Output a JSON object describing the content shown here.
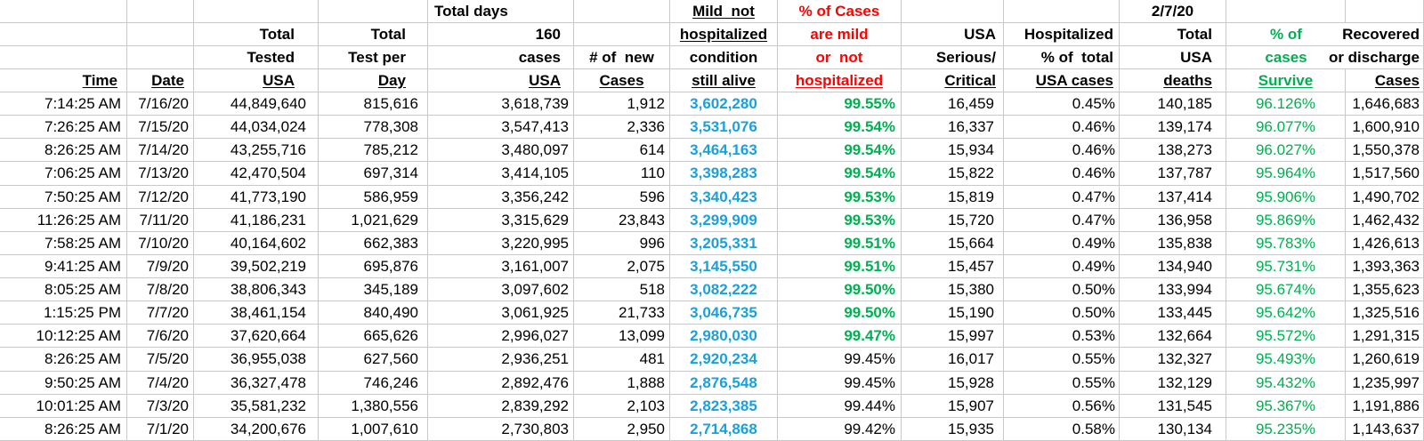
{
  "sheet": {
    "header_rows": [
      [
        "",
        "",
        "",
        "",
        "Total days",
        "",
        "Mild  not",
        "% of Cases",
        "",
        "",
        "2/7/20",
        "",
        ""
      ],
      [
        "",
        "",
        "Total",
        "Total",
        "160",
        "",
        "hospitalized",
        "are mild",
        "USA",
        "Hospitalized",
        "Total",
        "% of",
        "Recovered"
      ],
      [
        "",
        "",
        "Tested",
        "Test per",
        "cases",
        "# of  new",
        "condition",
        "or  not",
        "Serious/",
        "% of  total",
        "USA",
        "cases",
        "or discharge"
      ],
      [
        "Time",
        "Date",
        "USA",
        "Day",
        "USA",
        "Cases",
        "still alive",
        "hospitalized",
        "Critical",
        "USA cases",
        "deaths",
        "Survive",
        "Cases"
      ]
    ],
    "column_keys": [
      "time",
      "date",
      "total_tested_usa",
      "total_test_per_day",
      "cases_usa",
      "new_cases",
      "mild_not_hospitalized",
      "pct_mild_not_hospitalized",
      "usa_serious_critical",
      "hospitalized_pct_of_total",
      "total_usa_deaths",
      "pct_cases_survive",
      "recovered_or_discharged"
    ],
    "rows": [
      [
        "7:14:25 AM",
        "7/16/20",
        "44,849,640",
        "815,616",
        "3,618,739",
        "1,912",
        "3,602,280",
        "99.55%",
        "16,459",
        "0.45%",
        "140,185",
        "96.126%",
        "1,646,683"
      ],
      [
        "7:26:25 AM",
        "7/15/20",
        "44,034,024",
        "778,308",
        "3,547,413",
        "2,336",
        "3,531,076",
        "99.54%",
        "16,337",
        "0.46%",
        "139,174",
        "96.077%",
        "1,600,910"
      ],
      [
        "8:26:25 AM",
        "7/14/20",
        "43,255,716",
        "785,212",
        "3,480,097",
        "614",
        "3,464,163",
        "99.54%",
        "15,934",
        "0.46%",
        "138,273",
        "96.027%",
        "1,550,378"
      ],
      [
        "7:06:25 AM",
        "7/13/20",
        "42,470,504",
        "697,314",
        "3,414,105",
        "110",
        "3,398,283",
        "99.54%",
        "15,822",
        "0.46%",
        "137,787",
        "95.964%",
        "1,517,560"
      ],
      [
        "7:50:25 AM",
        "7/12/20",
        "41,773,190",
        "586,959",
        "3,356,242",
        "596",
        "3,340,423",
        "99.53%",
        "15,819",
        "0.47%",
        "137,414",
        "95.906%",
        "1,490,702"
      ],
      [
        "11:26:25 AM",
        "7/11/20",
        "41,186,231",
        "1,021,629",
        "3,315,629",
        "23,843",
        "3,299,909",
        "99.53%",
        "15,720",
        "0.47%",
        "136,958",
        "95.869%",
        "1,462,432"
      ],
      [
        "7:58:25 AM",
        "7/10/20",
        "40,164,602",
        "662,383",
        "3,220,995",
        "996",
        "3,205,331",
        "99.51%",
        "15,664",
        "0.49%",
        "135,838",
        "95.783%",
        "1,426,613"
      ],
      [
        "9:41:25 AM",
        "7/9/20",
        "39,502,219",
        "695,876",
        "3,161,007",
        "2,075",
        "3,145,550",
        "99.51%",
        "15,457",
        "0.49%",
        "134,940",
        "95.731%",
        "1,393,363"
      ],
      [
        "8:05:25 AM",
        "7/8/20",
        "38,806,343",
        "345,189",
        "3,097,602",
        "518",
        "3,082,222",
        "99.50%",
        "15,380",
        "0.50%",
        "133,994",
        "95.674%",
        "1,355,623"
      ],
      [
        "1:15:25 PM",
        "7/7/20",
        "38,461,154",
        "840,490",
        "3,061,925",
        "21,733",
        "3,046,735",
        "99.50%",
        "15,190",
        "0.50%",
        "133,445",
        "95.642%",
        "1,325,516"
      ],
      [
        "10:12:25 AM",
        "7/6/20",
        "37,620,664",
        "665,626",
        "2,996,027",
        "13,099",
        "2,980,030",
        "99.47%",
        "15,997",
        "0.53%",
        "132,664",
        "95.572%",
        "1,291,315"
      ],
      [
        "8:26:25 AM",
        "7/5/20",
        "36,955,038",
        "627,560",
        "2,936,251",
        "481",
        "2,920,234",
        "99.45%",
        "16,017",
        "0.55%",
        "132,327",
        "95.493%",
        "1,260,619"
      ],
      [
        "9:50:25 AM",
        "7/4/20",
        "36,327,478",
        "746,246",
        "2,892,476",
        "1,888",
        "2,876,548",
        "99.45%",
        "15,928",
        "0.55%",
        "132,129",
        "95.432%",
        "1,235,997"
      ],
      [
        "10:01:25 AM",
        "7/3/20",
        "35,581,232",
        "1,380,556",
        "2,839,292",
        "2,103",
        "2,823,385",
        "99.44%",
        "15,907",
        "0.56%",
        "131,545",
        "95.367%",
        "1,191,886"
      ],
      [
        "8:26:25 AM",
        "7/1/20",
        "34,200,676",
        "1,007,610",
        "2,730,803",
        "2,950",
        "2,714,868",
        "99.42%",
        "15,935",
        "0.58%",
        "130,134",
        "95.235%",
        "1,143,637"
      ]
    ],
    "colors": {
      "mild_count": "#1aa0dc",
      "good_pct": "#00b050",
      "warning_header": "#ff0000",
      "gridline": "#c8c8c8"
    },
    "green_bold_mild_pct_row_count": 11
  }
}
